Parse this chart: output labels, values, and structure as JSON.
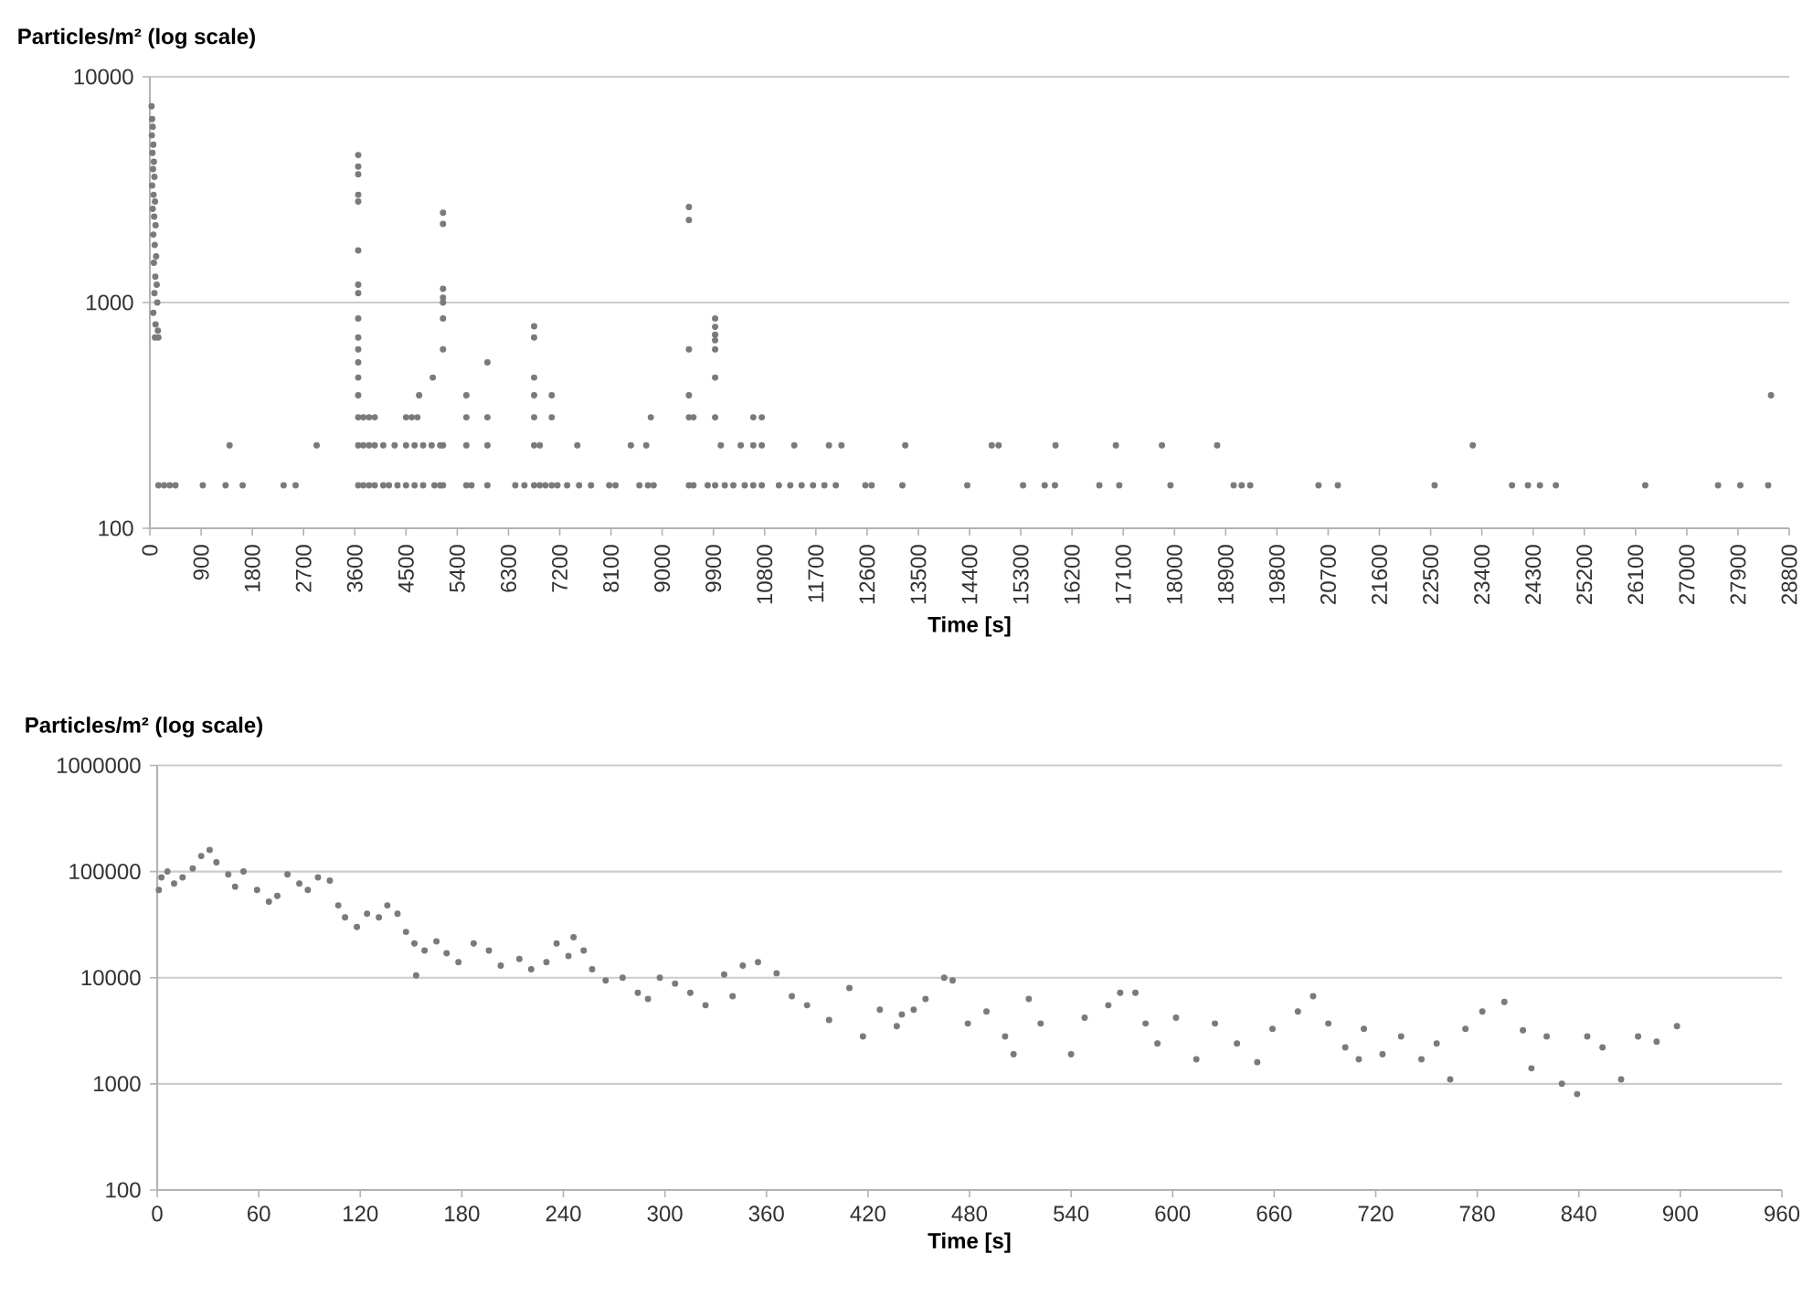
{
  "chart_data": [
    {
      "type": "scatter",
      "ylabel": "Particles/m² (log scale)",
      "xlabel": "Time [s]",
      "color": "#7a7a7a",
      "marker": "circle",
      "log": "y",
      "grid": "y",
      "xlim": [
        0,
        28800
      ],
      "ylim": [
        100,
        10000
      ],
      "xticks": [
        0,
        900,
        1800,
        2700,
        3600,
        4500,
        5400,
        6300,
        7200,
        8100,
        9000,
        9900,
        10800,
        11700,
        12600,
        13500,
        14400,
        15300,
        16200,
        17100,
        18000,
        18900,
        19800,
        20700,
        21600,
        22500,
        23400,
        24300,
        25200,
        26100,
        27000,
        27900,
        28800
      ],
      "yticks": [
        100,
        1000,
        10000
      ],
      "x": [
        30,
        40,
        50,
        35,
        60,
        45,
        70,
        55,
        80,
        40,
        65,
        90,
        50,
        75,
        100,
        60,
        85,
        110,
        70,
        95,
        120,
        80,
        130,
        60,
        100,
        140,
        90,
        150,
        150,
        250,
        350,
        450,
        930,
        1330,
        1630,
        2350,
        2560,
        1400,
        2930,
        3660,
        3660,
        3660,
        3660,
        3660,
        3660,
        3660,
        3660,
        3660,
        3660,
        3660,
        3660,
        3660,
        3660,
        3660,
        3660,
        3660,
        3750,
        3850,
        3950,
        4500,
        4600,
        4700,
        3750,
        3850,
        3950,
        4100,
        4300,
        4500,
        4650,
        4800,
        4950,
        5100,
        3750,
        3850,
        3950,
        4100,
        4200,
        4350,
        4500,
        4650,
        4800,
        5000,
        5100,
        4730,
        4970,
        5150,
        5150,
        5150,
        5150,
        5150,
        5150,
        5150,
        5150,
        5150,
        5560,
        5560,
        5560,
        5560,
        5650,
        5930,
        5930,
        5930,
        5930,
        6420,
        6580,
        6750,
        6750,
        6750,
        6750,
        6750,
        6750,
        6750,
        6850,
        6850,
        6950,
        7060,
        7060,
        7060,
        7160,
        7510,
        7330,
        7540,
        7750,
        8070,
        8180,
        8450,
        8720,
        8800,
        8600,
        8750,
        8850,
        9470,
        9470,
        9470,
        9470,
        9470,
        9470,
        9550,
        9550,
        9930,
        9930,
        9930,
        9930,
        9930,
        9930,
        9930,
        9930,
        9800,
        10030,
        10380,
        10100,
        10250,
        10450,
        10600,
        10600,
        10600,
        10750,
        10750,
        10750,
        11320,
        11930,
        12150,
        11050,
        11250,
        11450,
        11650,
        11850,
        12050,
        12570,
        12680,
        13270,
        13220,
        14360,
        14790,
        14910,
        15340,
        15720,
        15900,
        15910,
        16680,
        17030,
        16970,
        17780,
        17930,
        18750,
        19040,
        19180,
        19330,
        20530,
        20870,
        22570,
        23240,
        23930,
        24210,
        24420,
        24700,
        26270,
        27550,
        27940,
        28430,
        28480
      ],
      "values": [
        7400,
        6500,
        6000,
        5500,
        5000,
        4600,
        4200,
        3900,
        3600,
        3300,
        3000,
        2800,
        2600,
        2400,
        2200,
        2000,
        1800,
        1600,
        1500,
        1300,
        1200,
        1100,
        1000,
        900,
        800,
        750,
        700,
        700,
        155,
        155,
        155,
        155,
        155,
        155,
        155,
        155,
        155,
        233,
        233,
        4500,
        4000,
        3700,
        3000,
        2800,
        1700,
        1200,
        1100,
        850,
        700,
        620,
        543,
        465,
        388,
        310,
        233,
        155,
        310,
        310,
        310,
        310,
        310,
        310,
        233,
        233,
        233,
        233,
        233,
        233,
        233,
        233,
        233,
        233,
        155,
        155,
        155,
        155,
        155,
        155,
        155,
        155,
        155,
        155,
        155,
        388,
        465,
        2500,
        2230,
        1150,
        1050,
        1000,
        850,
        620,
        233,
        155,
        388,
        310,
        233,
        155,
        155,
        543,
        310,
        233,
        155,
        155,
        155,
        785,
        700,
        465,
        388,
        310,
        233,
        155,
        233,
        155,
        155,
        388,
        310,
        155,
        155,
        233,
        155,
        155,
        155,
        155,
        155,
        233,
        233,
        310,
        155,
        155,
        155,
        2650,
        2320,
        620,
        388,
        310,
        155,
        310,
        155,
        850,
        780,
        720,
        680,
        620,
        465,
        310,
        155,
        155,
        233,
        233,
        155,
        155,
        155,
        310,
        233,
        155,
        310,
        233,
        155,
        233,
        233,
        233,
        155,
        155,
        155,
        155,
        155,
        155,
        155,
        155,
        233,
        155,
        155,
        233,
        233,
        155,
        155,
        155,
        233,
        155,
        155,
        233,
        233,
        155,
        233,
        155,
        155,
        155,
        155,
        155,
        155,
        233,
        155,
        155,
        155,
        155,
        155,
        155,
        155,
        155,
        388
      ]
    },
    {
      "type": "scatter",
      "ylabel": "Particles/m² (log scale)",
      "xlabel": "Time [s]",
      "color": "#7a7a7a",
      "marker": "circle",
      "log": "y",
      "grid": "y",
      "xlim": [
        0,
        960
      ],
      "ylim": [
        100,
        1000000
      ],
      "xticks": [
        0,
        60,
        120,
        180,
        240,
        300,
        360,
        420,
        480,
        540,
        600,
        660,
        720,
        780,
        840,
        900,
        960
      ],
      "yticks": [
        100,
        1000,
        10000,
        100000,
        1000000
      ],
      "x": [
        1,
        2.5,
        6,
        10,
        15,
        21,
        26,
        31,
        35,
        42,
        46,
        51,
        59,
        66,
        71,
        77,
        84,
        89,
        95,
        102,
        107,
        111,
        118,
        124,
        131,
        136,
        142,
        147,
        152,
        153,
        158,
        165,
        171,
        178,
        187,
        196,
        203,
        214,
        221,
        230,
        236,
        243,
        246,
        252,
        257,
        265,
        275,
        284,
        290,
        297,
        306,
        315,
        324,
        335,
        340,
        346,
        355,
        366,
        375,
        384,
        397,
        409,
        417,
        427,
        437,
        440,
        447,
        454,
        465,
        470,
        479,
        490,
        501,
        506,
        515,
        522,
        540,
        548,
        562,
        569,
        578,
        584,
        591,
        602,
        614,
        625,
        638,
        650,
        659,
        674,
        683,
        692,
        702,
        710,
        713,
        724,
        735,
        747,
        756,
        764,
        773,
        783,
        796,
        807,
        812,
        821,
        830,
        839,
        845,
        854,
        865,
        875,
        886,
        898
      ],
      "values": [
        67000,
        88000,
        100000,
        77000,
        88000,
        107000,
        140000,
        160000,
        122000,
        94000,
        72000,
        100000,
        67000,
        52000,
        59000,
        94000,
        77000,
        67000,
        88000,
        82000,
        48000,
        37000,
        30000,
        40000,
        37000,
        48000,
        40000,
        27000,
        21000,
        10500,
        18000,
        22000,
        17000,
        14000,
        21000,
        18000,
        13000,
        15000,
        12000,
        14000,
        21000,
        16000,
        24000,
        18000,
        12000,
        9400,
        10000,
        7200,
        6300,
        10000,
        8800,
        7200,
        5500,
        10700,
        6700,
        13000,
        14000,
        11000,
        6700,
        5500,
        4000,
        8000,
        2800,
        5000,
        3500,
        4500,
        5000,
        6300,
        10000,
        9400,
        3700,
        4800,
        2800,
        1900,
        6300,
        3700,
        1900,
        4200,
        5500,
        7200,
        7200,
        3700,
        2400,
        4200,
        1700,
        3700,
        2400,
        1600,
        3300,
        4800,
        6700,
        3700,
        2200,
        1700,
        3300,
        1900,
        2800,
        1700,
        2400,
        1100,
        3300,
        4800,
        5900,
        3200,
        1400,
        2800,
        1000,
        800,
        2800,
        2200,
        1100,
        2800,
        2500,
        3500
      ]
    }
  ]
}
